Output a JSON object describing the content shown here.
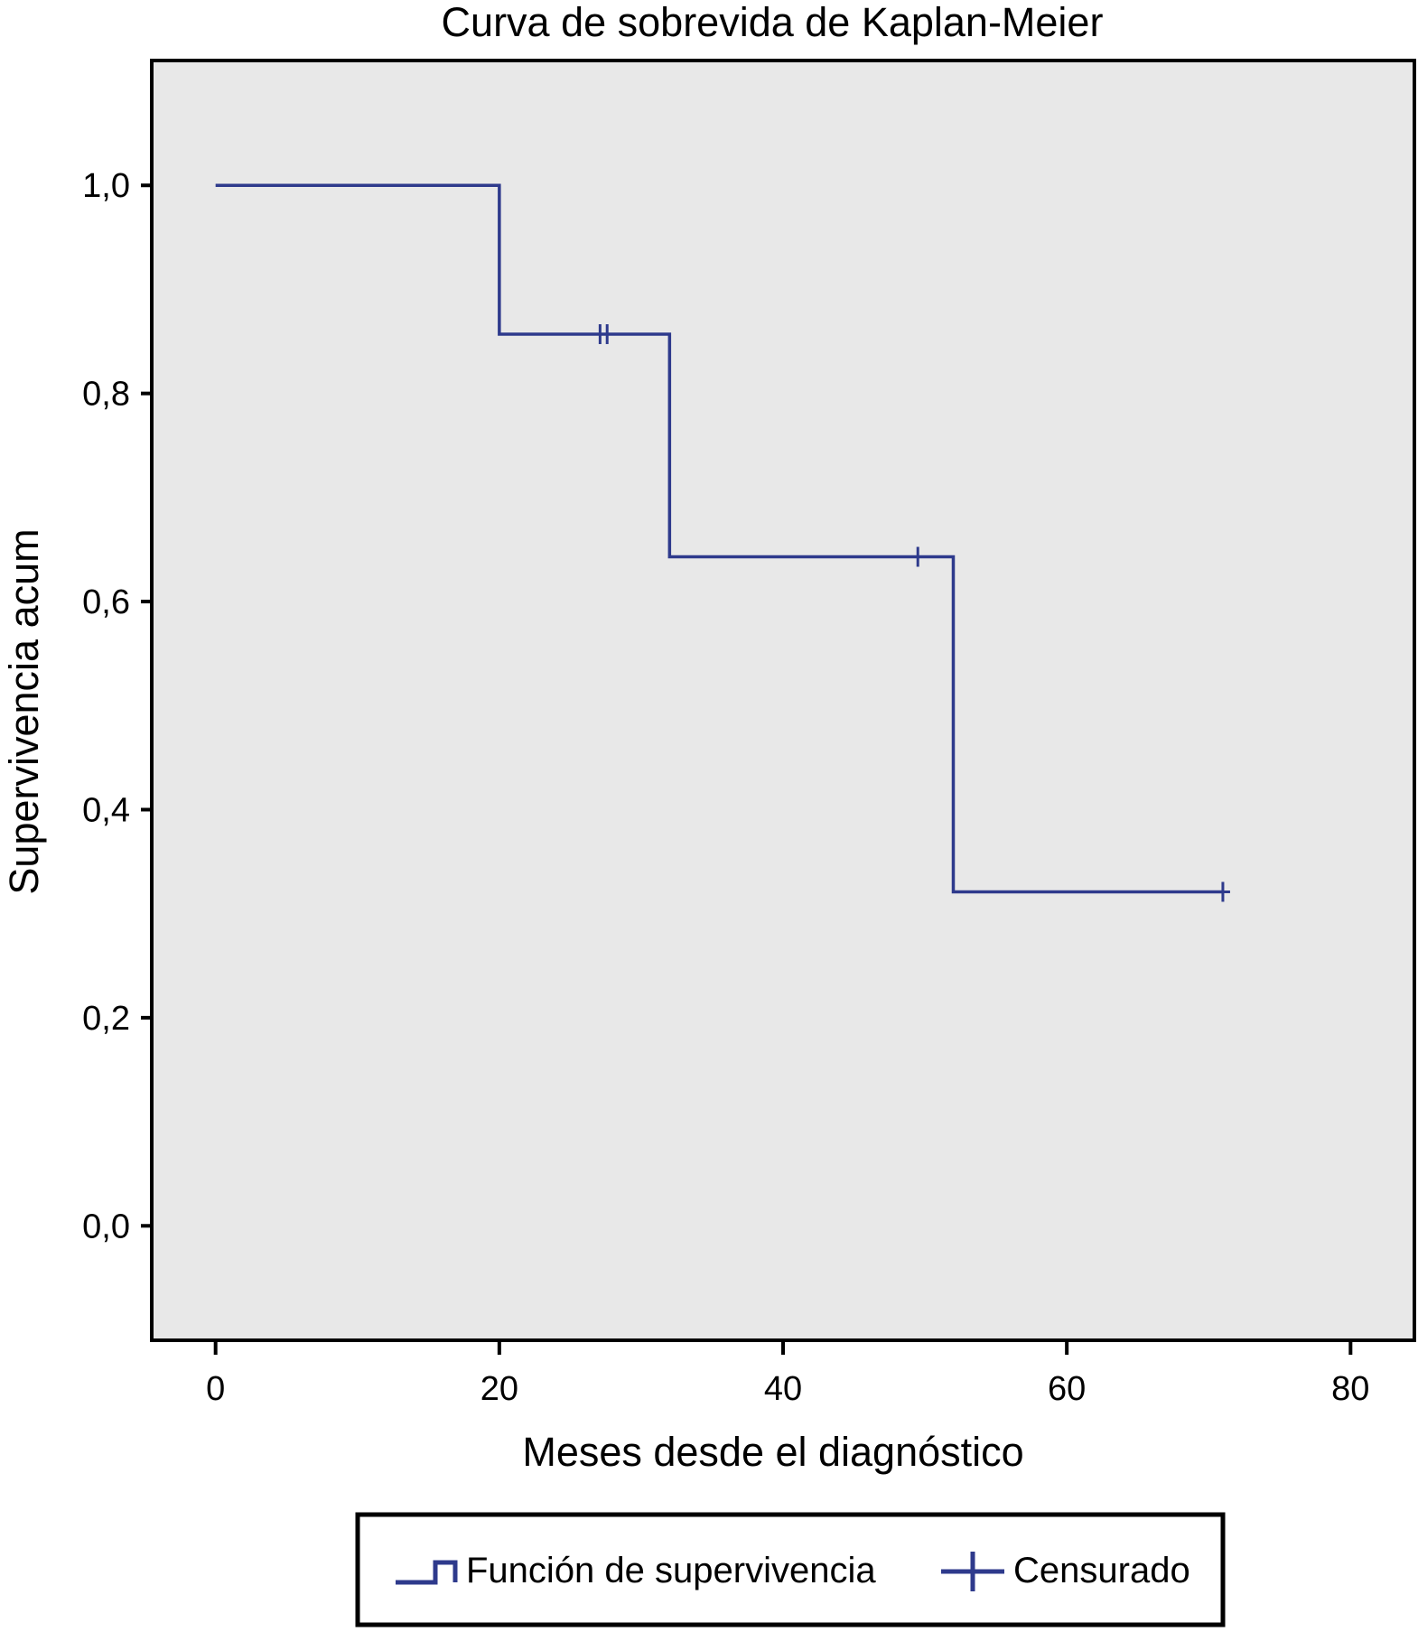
{
  "chart_data": {
    "type": "line",
    "title": "Curva de sobrevida de Kaplan-Meier",
    "xlabel": "Meses desde el diagnóstico",
    "ylabel": "Supervivencia acum",
    "xlim": [
      -4.5,
      84.5
    ],
    "ylim": [
      -0.11,
      1.12
    ],
    "x_ticks": [
      0,
      20,
      40,
      60,
      80
    ],
    "x_tick_labels": [
      "0",
      "20",
      "40",
      "60",
      "80"
    ],
    "y_ticks": [
      0.0,
      0.2,
      0.4,
      0.6,
      0.8,
      1.0
    ],
    "y_tick_labels": [
      "0,0",
      "0,2",
      "0,4",
      "0,6",
      "0,8",
      "1,0"
    ],
    "grid": false,
    "legend_position": "bottom",
    "plot_background": "#e8e8e8",
    "series": [
      {
        "name": "Función de supervivencia",
        "kind": "step",
        "color": "#2e3a8c",
        "x": [
          0,
          20,
          32,
          52,
          71
        ],
        "y": [
          1.0,
          0.857,
          0.643,
          0.321,
          0.321
        ]
      },
      {
        "name": "Censurado",
        "kind": "censor-marks",
        "color": "#2e3a8c",
        "x": [
          27.1,
          27.6,
          49.5,
          71
        ],
        "y": [
          0.857,
          0.857,
          0.643,
          0.321
        ]
      }
    ]
  }
}
